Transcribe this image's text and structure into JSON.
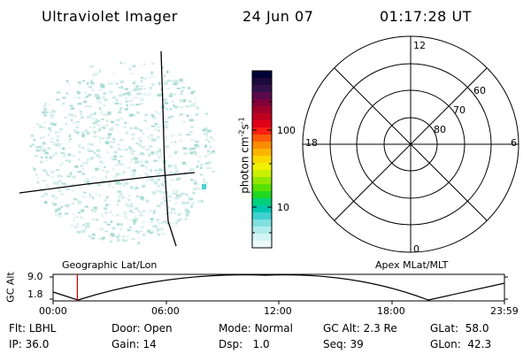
{
  "header": {
    "title": "Ultraviolet Imager",
    "date": "24 Jun 07",
    "time": "01:17:28 UT"
  },
  "colorbar": {
    "label": "photon cm<sup>-2</sup>s<sup>-1</sup>",
    "label_text": "photon cm-2s-1",
    "scale": "log",
    "ticks": [
      "100",
      "10"
    ],
    "colors": [
      "#000033",
      "#1a0a3a",
      "#33104a",
      "#5a0a4a",
      "#80003a",
      "#a0002a",
      "#c00020",
      "#e00018",
      "#f82010",
      "#fa5a08",
      "#fb8c00",
      "#fbb400",
      "#fad800",
      "#f0f000",
      "#c8f000",
      "#90e800",
      "#58e000",
      "#20d820",
      "#00d078",
      "#00c8b0",
      "#40d0d0",
      "#80e0e0",
      "#b0ecec",
      "#d4f4f4",
      "#ecfafa"
    ]
  },
  "polar_plot": {
    "rings": [
      "60",
      "70",
      "80"
    ],
    "mlt": {
      "top": "12",
      "left": "18",
      "right": "6",
      "bottom": "0"
    }
  },
  "altitude_panel": {
    "left_label": "Geographic Lat/Lon",
    "right_label": "Apex MLat/MLT",
    "y_axis_label": "GC Alt",
    "y_ticks": [
      "9.0",
      "1.8"
    ],
    "x_ticks": [
      "00:00",
      "06:00",
      "12:00",
      "18:00",
      "23:59"
    ],
    "current_time_hours": 1.29
  },
  "footer": {
    "flt_label": "Flt:",
    "flt_value": "LBHL",
    "ip_label": "IP:",
    "ip_value": "36.0",
    "door_label": "Door:",
    "door_value": "Open",
    "gain_label": "Gain:",
    "gain_value": "14",
    "mode_label": "Mode:",
    "mode_value": "Normal",
    "dsp_label": "Dsp:",
    "dsp_value": "1.0",
    "gcalt_label": "GC Alt:",
    "gcalt_value": "2.3 Re",
    "seq_label": "Seq:",
    "seq_value": "39",
    "glat_label": "GLat:",
    "glat_value": "58.0",
    "glon_label": "GLon:",
    "glon_value": "42.3"
  }
}
